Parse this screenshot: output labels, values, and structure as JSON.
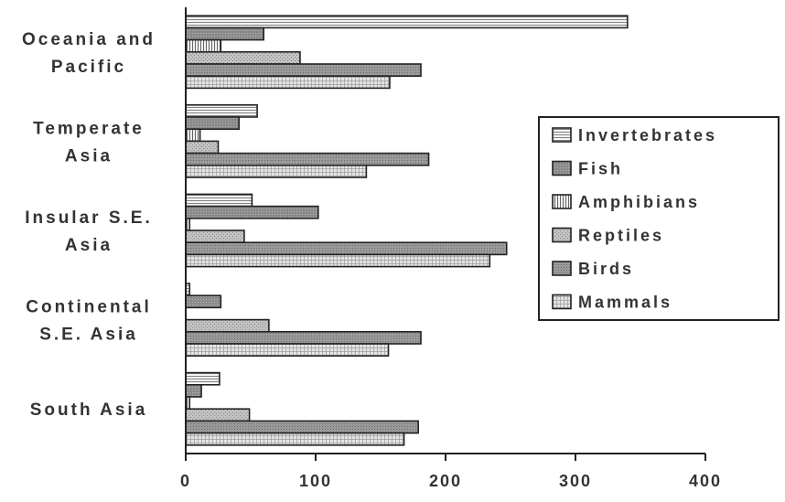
{
  "chart_data": {
    "type": "bar",
    "orientation": "horizontal",
    "categories": [
      [
        "Oceania and",
        "Pacific"
      ],
      [
        "Temperate",
        "Asia"
      ],
      [
        "Insular S.E.",
        "Asia"
      ],
      [
        "Continental",
        "S.E. Asia"
      ],
      [
        "South Asia"
      ]
    ],
    "series": [
      {
        "name": "Invertebrates",
        "values": [
          340,
          55,
          51,
          3,
          26
        ]
      },
      {
        "name": "Fish",
        "values": [
          60,
          41,
          102,
          27,
          12
        ]
      },
      {
        "name": "Amphibians",
        "values": [
          27,
          11,
          3,
          0,
          3
        ]
      },
      {
        "name": "Reptiles",
        "values": [
          88,
          25,
          45,
          64,
          49
        ]
      },
      {
        "name": "Birds",
        "values": [
          181,
          187,
          247,
          181,
          179
        ]
      },
      {
        "name": "Mammals",
        "values": [
          157,
          139,
          234,
          156,
          168
        ]
      }
    ],
    "xlim": [
      0,
      400
    ],
    "xticks": [
      "0",
      "100",
      "200",
      "300",
      "400"
    ],
    "legend_position": "right",
    "grid": false,
    "colors": {
      "Invertebrates": "#f1f1f1",
      "Fish": "#8c8c8c",
      "Amphibians": "#e9e9e9",
      "Reptiles": "#bdbdbd",
      "Birds": "#9b9b9b",
      "Mammals": "#dedede"
    }
  }
}
